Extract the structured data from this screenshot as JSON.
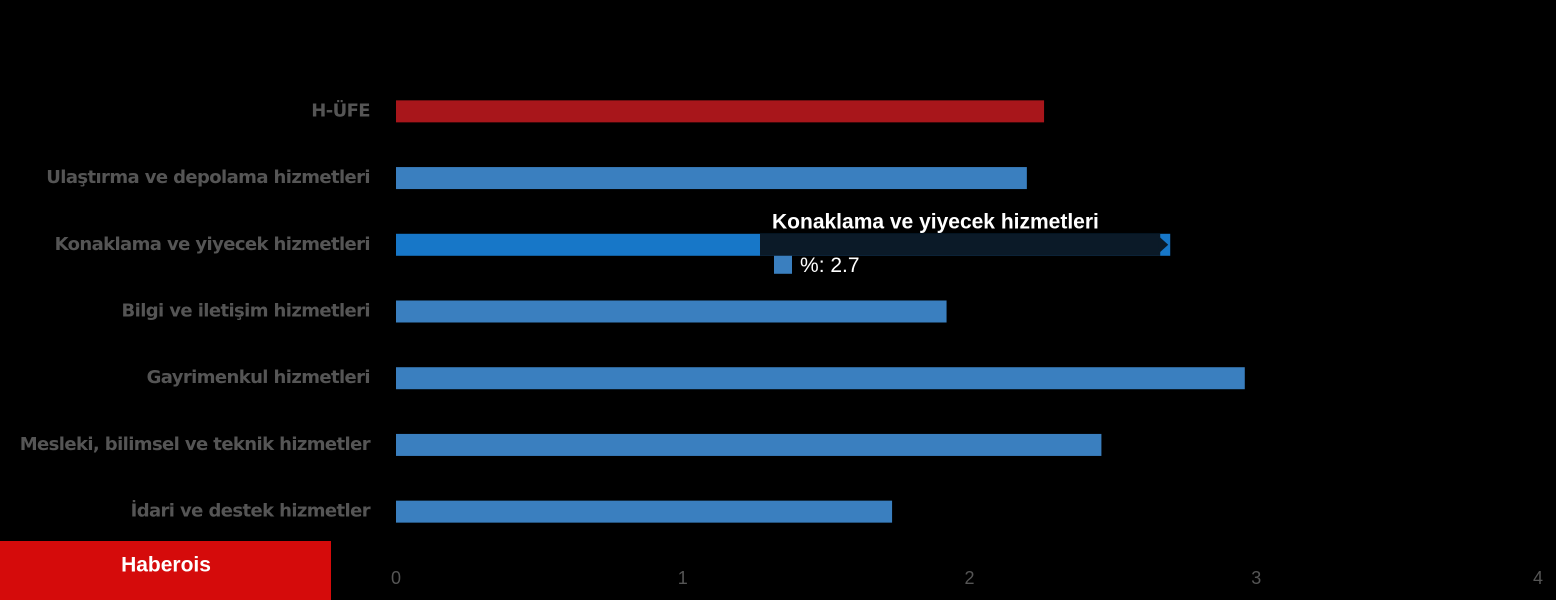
{
  "chart_data": {
    "type": "barh",
    "categories": [
      "H-ÜFE",
      "Ulaştırma ve depolama hizmetleri",
      "Konaklama ve yiyecek hizmetleri",
      "Bilgi ve iletişim hizmetleri",
      "Gayrimenkul hizmetleri",
      "Mesleki, bilimsel ve teknik hizmetler",
      "İdari ve destek hizmetler"
    ],
    "series": [
      {
        "name": "%",
        "values": [
          2.26,
          2.2,
          2.7,
          1.92,
          2.96,
          2.46,
          1.73
        ],
        "colors": [
          "#a8161b",
          "#3a7fbf",
          "#1777c8",
          "#3a7fbf",
          "#3a7fbf",
          "#3a7fbf",
          "#3a7fbf"
        ],
        "color": "#3a7fbf"
      }
    ],
    "xlim": [
      0,
      4
    ],
    "xticks": [
      0,
      1,
      2,
      3,
      4
    ],
    "grid": false,
    "tooltip": {
      "index": 2
    }
  },
  "brand": "Haberois"
}
